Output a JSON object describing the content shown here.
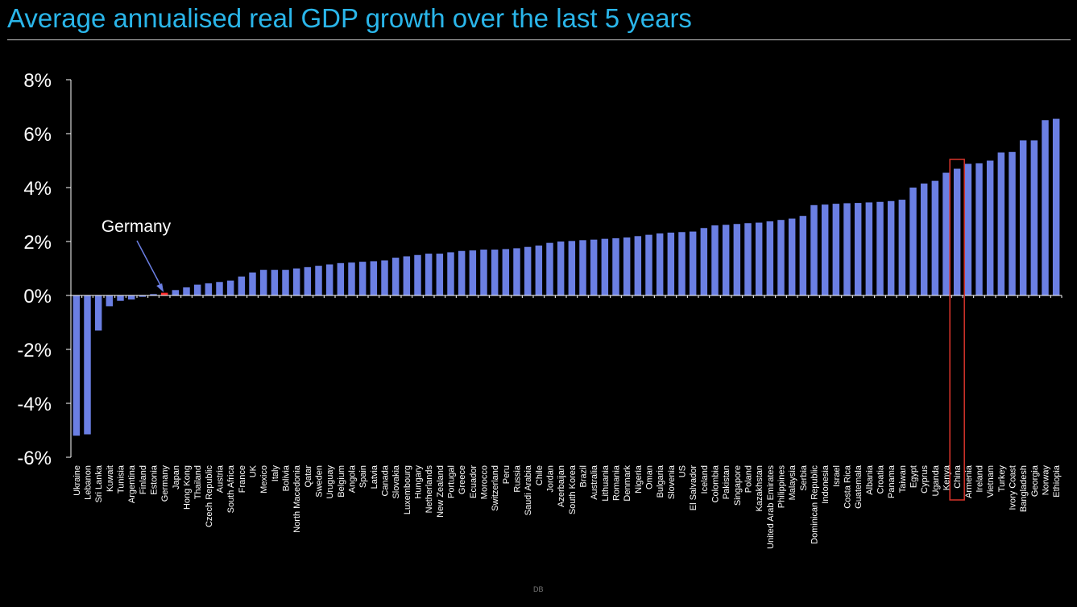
{
  "title": "Average annualised real GDP growth over the last 5 years",
  "footer": "DB",
  "annotation": {
    "text": "Germany",
    "target": "Germany"
  },
  "colors": {
    "bar": "#6b7fe3",
    "highlight": "#ff2a2a",
    "box": "#d9342b",
    "title": "#2ab6ea",
    "axis": "#ffffff"
  },
  "chart_data": {
    "type": "bar",
    "ylim": [
      -6,
      8
    ],
    "ytick_values": [
      -6,
      -4,
      -2,
      0,
      2,
      4,
      6,
      8
    ],
    "ytick_labels": [
      "-6%",
      "-4%",
      "-2%",
      "0%",
      "2%",
      "4%",
      "6%",
      "8%"
    ],
    "highlight_category": "Germany",
    "boxed_category": "China",
    "categories": [
      "Ukraine",
      "Lebanon",
      "Sri Lanka",
      "Kuwait",
      "Tunisia",
      "Argentina",
      "Finland",
      "Estonia",
      "Germany",
      "Japan",
      "Hong Kong",
      "Thailand",
      "Czech Republic",
      "Austria",
      "South Africa",
      "France",
      "UK",
      "Mexico",
      "Italy",
      "Bolivia",
      "North Macedonia",
      "Qatar",
      "Sweden",
      "Uruguay",
      "Belgium",
      "Angola",
      "Spain",
      "Latvia",
      "Canada",
      "Slovakia",
      "Luxembourg",
      "Hungary",
      "Netherlands",
      "New Zealand",
      "Portugal",
      "Greece",
      "Ecuador",
      "Morocco",
      "Switzerland",
      "Peru",
      "Russia",
      "Saudi Arabia",
      "Chile",
      "Jordan",
      "Azerbaijan",
      "South Korea",
      "Brazil",
      "Australia",
      "Lithuania",
      "Romania",
      "Denmark",
      "Nigeria",
      "Oman",
      "Bulgaria",
      "Slovenia",
      "US",
      "El Salvador",
      "Iceland",
      "Colombia",
      "Pakistan",
      "Singapore",
      "Poland",
      "Kazakhstan",
      "United Arab Emirates",
      "Philippines",
      "Malaysia",
      "Serbia",
      "Dominican Republic",
      "Indonesia",
      "Israel",
      "Costa Rica",
      "Guatemala",
      "Albania",
      "Croatia",
      "Panama",
      "Taiwan",
      "Egypt",
      "Cyprus",
      "Uganda",
      "Kenya",
      "China",
      "Armenia",
      "Ireland",
      "Vietnam",
      "Turkey",
      "Ivory Coast",
      "Bangladesh",
      "Georgia",
      "Norway",
      "Ethiopia"
    ],
    "values": [
      -5.2,
      -5.15,
      -1.3,
      -0.4,
      -0.2,
      -0.15,
      -0.05,
      0.05,
      0.1,
      0.2,
      0.3,
      0.4,
      0.45,
      0.5,
      0.55,
      0.7,
      0.85,
      0.95,
      0.95,
      0.95,
      1.0,
      1.05,
      1.1,
      1.15,
      1.2,
      1.22,
      1.25,
      1.27,
      1.3,
      1.4,
      1.45,
      1.5,
      1.55,
      1.55,
      1.6,
      1.65,
      1.67,
      1.7,
      1.7,
      1.72,
      1.75,
      1.8,
      1.85,
      1.95,
      2.0,
      2.02,
      2.05,
      2.07,
      2.1,
      2.12,
      2.15,
      2.2,
      2.25,
      2.3,
      2.33,
      2.35,
      2.37,
      2.5,
      2.6,
      2.62,
      2.65,
      2.68,
      2.7,
      2.75,
      2.8,
      2.85,
      2.95,
      3.35,
      3.37,
      3.4,
      3.42,
      3.43,
      3.45,
      3.47,
      3.5,
      3.55,
      4.0,
      4.15,
      4.25,
      4.55,
      4.7,
      4.88,
      4.9,
      5.0,
      5.3,
      5.32,
      5.75,
      5.75,
      6.5,
      6.55
    ]
  }
}
